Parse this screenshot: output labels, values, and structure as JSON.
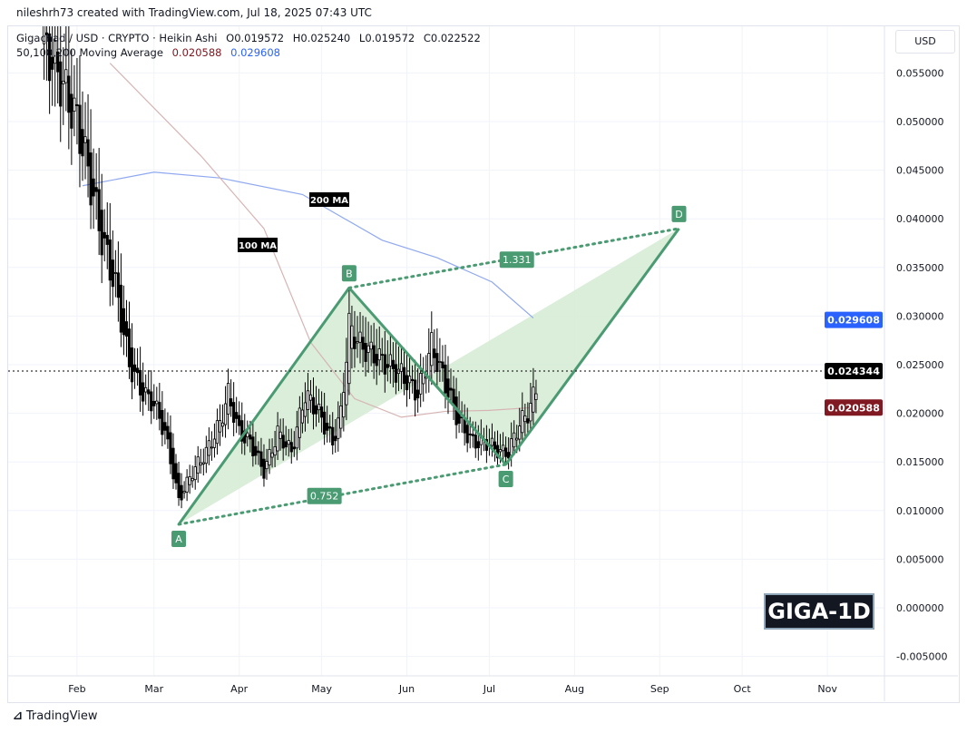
{
  "header": {
    "credit": "nileshrh73 created with TradingView.com, Jul 18, 2025 07:43 UTC",
    "symbol": "Gigachad / USD · CRYPTO · Heikin Ashi",
    "open": "O0.019572",
    "high": "H0.025240",
    "low": "L0.019572",
    "close": "C0.022522",
    "ma_label": "50,100,200 Moving Average",
    "ma100_value": "0.020588",
    "ma200_value": "0.029608"
  },
  "currency": "USD",
  "brand": "TradingView",
  "watermark": "GIGA-1D",
  "chart_data": {
    "type": "candlestick",
    "ylim": [
      -0.006,
      0.06
    ],
    "yticks": [
      "0.055000",
      "0.050000",
      "0.045000",
      "0.040000",
      "0.035000",
      "0.030000",
      "0.025000",
      "0.020000",
      "0.015000",
      "0.010000",
      "0.005000",
      "0.000000",
      "-0.005000"
    ],
    "ytick_values": [
      0.055,
      0.05,
      0.045,
      0.04,
      0.035,
      0.03,
      0.025,
      0.02,
      0.015,
      0.01,
      0.005,
      0,
      -0.005
    ],
    "xticks": [
      "Feb",
      "Mar",
      "Apr",
      "May",
      "Jun",
      "Jul",
      "Aug",
      "Sep",
      "Oct",
      "Nov"
    ],
    "xtick_days": [
      31,
      59,
      90,
      120,
      151,
      181,
      212,
      243,
      273,
      304
    ],
    "price_path": [
      [
        19,
        0.058
      ],
      [
        24,
        0.055
      ],
      [
        31,
        0.05
      ],
      [
        35,
        0.045
      ],
      [
        40,
        0.038
      ],
      [
        45,
        0.033
      ],
      [
        50,
        0.025
      ],
      [
        55,
        0.022
      ],
      [
        59,
        0.021
      ],
      [
        63,
        0.018
      ],
      [
        68,
        0.011
      ],
      [
        73,
        0.014
      ],
      [
        78,
        0.016
      ],
      [
        83,
        0.019
      ],
      [
        86,
        0.022
      ],
      [
        90,
        0.018
      ],
      [
        94,
        0.017
      ],
      [
        99,
        0.014
      ],
      [
        104,
        0.018
      ],
      [
        109,
        0.016
      ],
      [
        114,
        0.022
      ],
      [
        119,
        0.02
      ],
      [
        124,
        0.017
      ],
      [
        127,
        0.02
      ],
      [
        130,
        0.029
      ],
      [
        134,
        0.027
      ],
      [
        139,
        0.026
      ],
      [
        144,
        0.025
      ],
      [
        149,
        0.024
      ],
      [
        155,
        0.022
      ],
      [
        160,
        0.027
      ],
      [
        165,
        0.023
      ],
      [
        170,
        0.019
      ],
      [
        175,
        0.017
      ],
      [
        180,
        0.017
      ],
      [
        185,
        0.016
      ],
      [
        188,
        0.016
      ],
      [
        192,
        0.019
      ],
      [
        195,
        0.02
      ],
      [
        198,
        0.0225
      ]
    ],
    "ma200": {
      "label": "200 MA",
      "color": "#8fa8f0",
      "points": [
        [
          33,
          0.0434
        ],
        [
          59,
          0.0448
        ],
        [
          83,
          0.0442
        ],
        [
          113,
          0.0425
        ],
        [
          142,
          0.0378
        ],
        [
          162,
          0.036
        ],
        [
          182,
          0.0335
        ],
        [
          197,
          0.0298
        ]
      ]
    },
    "ma100": {
      "label": "100 MA",
      "color": "#d7b4b4",
      "points": [
        [
          43,
          0.056
        ],
        [
          76,
          0.0465
        ],
        [
          99,
          0.039
        ],
        [
          116,
          0.0273
        ],
        [
          132,
          0.0215
        ],
        [
          149,
          0.0196
        ],
        [
          165,
          0.0202
        ],
        [
          181,
          0.0203
        ],
        [
          197,
          0.0206
        ]
      ]
    },
    "harmonic": {
      "points": [
        {
          "label": "A",
          "day": 68,
          "price": 0.00858
        },
        {
          "label": "B",
          "day": 130,
          "price": 0.0329
        },
        {
          "label": "C",
          "day": 187,
          "price": 0.01474
        },
        {
          "label": "D",
          "day": 250,
          "price": 0.039
        }
      ],
      "ratios": [
        {
          "label": "0.752",
          "day": 121,
          "price": 0.0115
        },
        {
          "label": "1.331",
          "day": 191,
          "price": 0.0358
        }
      ],
      "color": "#4a9a72",
      "fill": "#d3ebd3"
    },
    "last_price": {
      "value": "0.024344",
      "price": 0.024344,
      "color": "#000000"
    },
    "price_tags": [
      {
        "value": "0.029608",
        "price": 0.029608,
        "color": "#2962ff"
      },
      {
        "value": "0.024344",
        "price": 0.024344,
        "color": "#000000"
      },
      {
        "value": "0.020588",
        "price": 0.020588,
        "color": "#801922"
      }
    ]
  }
}
